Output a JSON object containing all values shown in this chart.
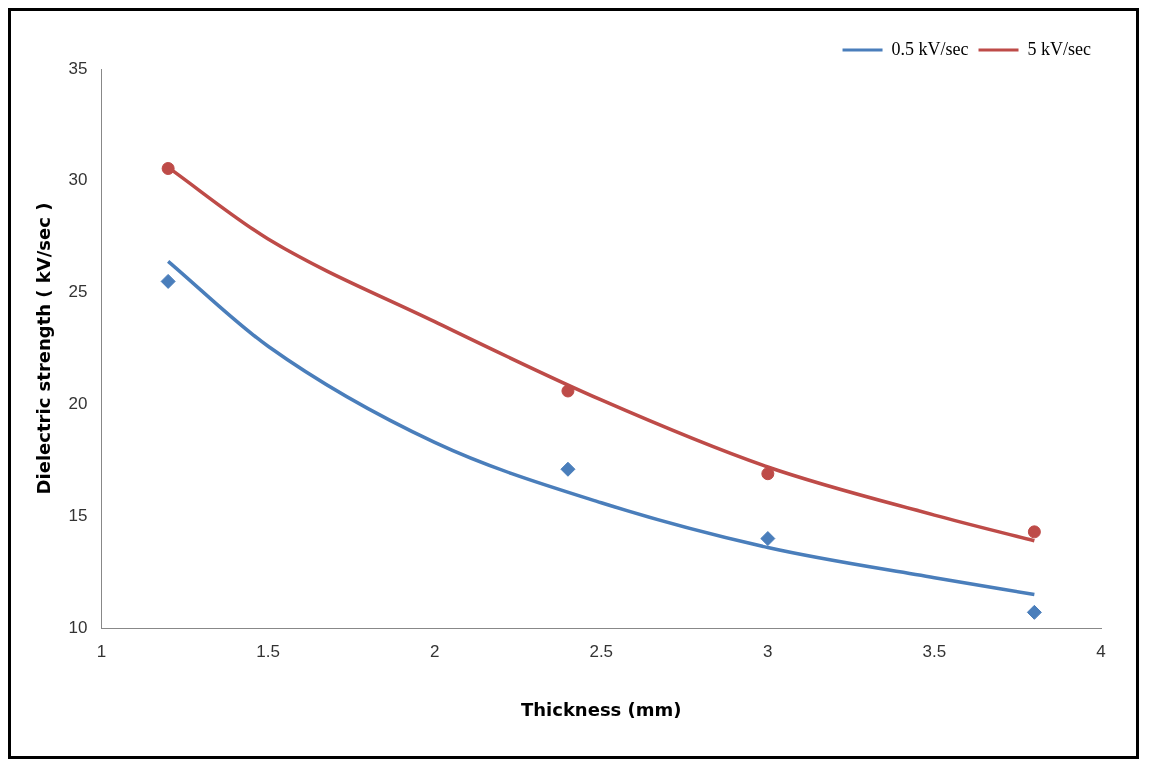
{
  "chart_data": {
    "type": "scatter",
    "xlabel": "Thickness (mm)",
    "ylabel": "Dielectric strength ( kV/sec )",
    "xlim": [
      1,
      4
    ],
    "xticks": [
      1,
      1.5,
      2,
      2.5,
      3,
      3.5,
      4
    ],
    "ylim": [
      10,
      35
    ],
    "yticks": [
      10,
      15,
      20,
      25,
      30,
      35
    ],
    "grid": false,
    "legend": "top right",
    "series": [
      {
        "type": "scatter",
        "marker": "diamond",
        "color": "#4a7ebb",
        "x": [
          1.2,
          2.4,
          3.0,
          3.8
        ],
        "values": [
          25.5,
          17.1,
          14.0,
          10.7
        ]
      },
      {
        "type": "scatter",
        "marker": "circle",
        "color": "#be4b48",
        "x": [
          1.2,
          2.4,
          3.0,
          3.8
        ],
        "values": [
          30.55,
          20.6,
          16.9,
          14.3
        ]
      },
      {
        "type": "line",
        "name": "0.5 kV/sec",
        "marker": "none",
        "color": "#4a7ebb",
        "x": [
          1.2,
          1.5,
          2,
          2.5,
          3,
          3.5,
          3.8
        ],
        "values": [
          26.4,
          22.6,
          18.3,
          15.6,
          13.6,
          12.25,
          11.5
        ]
      },
      {
        "type": "line",
        "name": "5 kV/sec",
        "marker": "none",
        "color": "#be4b48",
        "x": [
          1.2,
          1.5,
          2,
          2.5,
          3,
          3.5,
          3.8
        ],
        "values": [
          30.6,
          27.4,
          23.7,
          20.2,
          17.2,
          15.05,
          13.9
        ]
      }
    ]
  }
}
